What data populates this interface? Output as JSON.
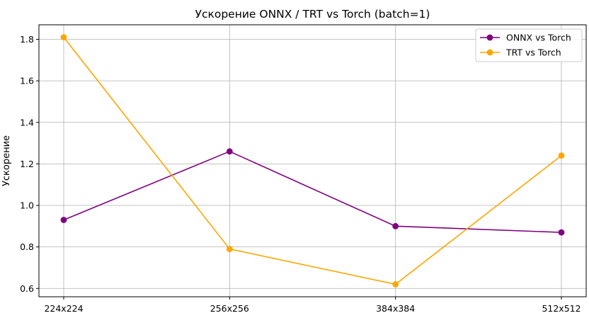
{
  "chart_data": {
    "type": "line",
    "title": "Ускорение ONNX / TRT vs Torch (batch=1)",
    "xlabel": "",
    "ylabel": "Ускорение",
    "categories": [
      "224x224",
      "256x256",
      "384x384",
      "512x512"
    ],
    "series": [
      {
        "name": "ONNX vs Torch",
        "color": "#800080",
        "values": [
          0.93,
          1.26,
          0.9,
          0.87
        ]
      },
      {
        "name": "TRT vs Torch",
        "color": "#FFA500",
        "values": [
          1.81,
          0.79,
          0.62,
          1.24
        ]
      }
    ],
    "ylim": [
      0.56,
      1.87
    ],
    "yticks": [
      0.6,
      0.8,
      1.0,
      1.2,
      1.4,
      1.6,
      1.8
    ],
    "ytick_labels": [
      "0.6",
      "0.8",
      "1.0",
      "1.2",
      "1.4",
      "1.6",
      "1.8"
    ],
    "grid": true,
    "legend_position": "top-right"
  }
}
